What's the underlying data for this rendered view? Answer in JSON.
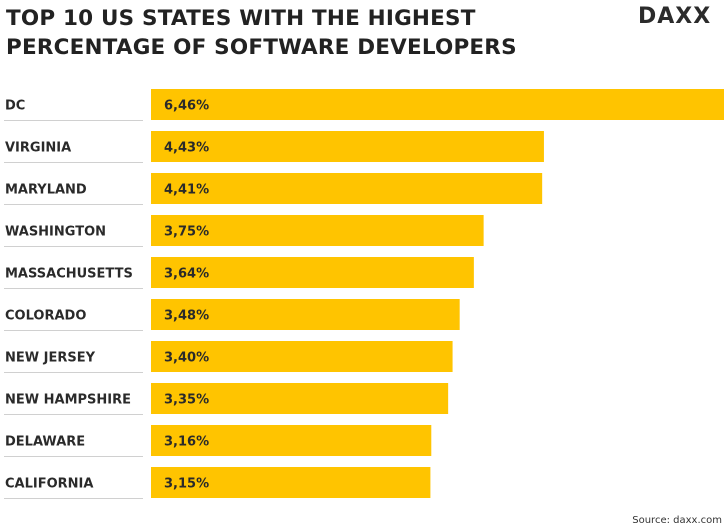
{
  "header": {
    "title_line1": "TOP 10 US STATES WITH THE HIGHEST",
    "title_line2": "PERCENTAGE OF SOFTWARE DEVELOPERS",
    "logo_text": "DAXX"
  },
  "footer": {
    "source": "Source: daxx.com"
  },
  "colors": {
    "bar": "#ffc400",
    "separator": "#d0d0d0",
    "text": "#2a2a2a"
  },
  "chart_data": {
    "type": "bar",
    "orientation": "horizontal",
    "categories": [
      "DC",
      "VIRGINIA",
      "MARYLAND",
      "WASHINGTON",
      "MASSACHUSETTS",
      "COLORADO",
      "NEW JERSEY",
      "NEW HAMPSHIRE",
      "DELAWARE",
      "CALIFORNIA"
    ],
    "values": [
      6.46,
      4.43,
      4.41,
      3.75,
      3.64,
      3.48,
      3.4,
      3.35,
      3.16,
      3.15
    ],
    "value_labels": [
      "6,46%",
      "4,43%",
      "4,41%",
      "3,75%",
      "3,64%",
      "3,48%",
      "3,40%",
      "3,35%",
      "3,16%",
      "3,15%"
    ],
    "title": "TOP 10 US STATES WITH THE HIGHEST PERCENTAGE OF SOFTWARE DEVELOPERS",
    "xlabel": "",
    "ylabel": "",
    "xlim": [
      0,
      6.46
    ],
    "grid": false,
    "legend": "none"
  }
}
